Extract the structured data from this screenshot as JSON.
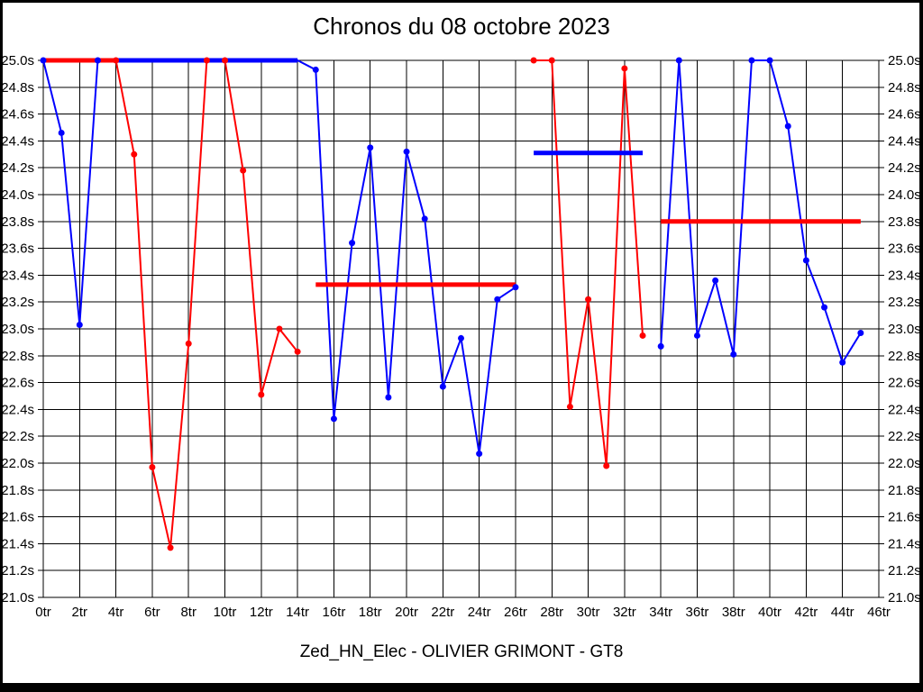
{
  "title": "Chronos du 08 octobre 2023",
  "subtitle": "Zed_HN_Elec - OLIVIER GRIMONT - GT8",
  "colors": {
    "blue": "#0000ff",
    "red": "#ff0000",
    "grid": "#000000",
    "background": "#ffffff",
    "text": "#000000"
  },
  "chart_data": {
    "type": "line",
    "title": "Chronos du 08 octobre 2023",
    "subtitle": "Zed_HN_Elec - OLIVIER GRIMONT - GT8",
    "x_unit": "tr",
    "y_unit": "s",
    "xlim": [
      0,
      46
    ],
    "ylim": [
      21.0,
      25.0
    ],
    "clip_max": 25.0,
    "grid": true,
    "y_ticks": [
      {
        "value": 25.0,
        "label": "25.0s"
      },
      {
        "value": 24.8,
        "label": "24.8s"
      },
      {
        "value": 24.6,
        "label": "24.6s"
      },
      {
        "value": 24.4,
        "label": "24.4s"
      },
      {
        "value": 24.2,
        "label": "24.2s"
      },
      {
        "value": 24.0,
        "label": "24.0s"
      },
      {
        "value": 23.8,
        "label": "23.8s"
      },
      {
        "value": 23.6,
        "label": "23.6s"
      },
      {
        "value": 23.4,
        "label": "23.4s"
      },
      {
        "value": 23.2,
        "label": "23.2s"
      },
      {
        "value": 23.0,
        "label": "23.0s"
      },
      {
        "value": 22.8,
        "label": "22.8s"
      },
      {
        "value": 22.6,
        "label": "22.6s"
      },
      {
        "value": 22.4,
        "label": "22.4s"
      },
      {
        "value": 22.2,
        "label": "22.2s"
      },
      {
        "value": 22.0,
        "label": "22.0s"
      },
      {
        "value": 21.8,
        "label": "21.8s"
      },
      {
        "value": 21.6,
        "label": "21.6s"
      },
      {
        "value": 21.4,
        "label": "21.4s"
      },
      {
        "value": 21.2,
        "label": "21.2s"
      },
      {
        "value": 21.0,
        "label": "21.0s"
      }
    ],
    "x_ticks": [
      {
        "value": 0,
        "label": "0tr"
      },
      {
        "value": 2,
        "label": "2tr"
      },
      {
        "value": 4,
        "label": "4tr"
      },
      {
        "value": 6,
        "label": "6tr"
      },
      {
        "value": 8,
        "label": "8tr"
      },
      {
        "value": 10,
        "label": "10tr"
      },
      {
        "value": 12,
        "label": "12tr"
      },
      {
        "value": 14,
        "label": "14tr"
      },
      {
        "value": 16,
        "label": "16tr"
      },
      {
        "value": 18,
        "label": "18tr"
      },
      {
        "value": 20,
        "label": "20tr"
      },
      {
        "value": 22,
        "label": "22tr"
      },
      {
        "value": 24,
        "label": "24tr"
      },
      {
        "value": 26,
        "label": "26tr"
      },
      {
        "value": 28,
        "label": "28tr"
      },
      {
        "value": 30,
        "label": "30tr"
      },
      {
        "value": 32,
        "label": "32tr"
      },
      {
        "value": 34,
        "label": "34tr"
      },
      {
        "value": 36,
        "label": "36tr"
      },
      {
        "value": 38,
        "label": "38tr"
      },
      {
        "value": 40,
        "label": "40tr"
      },
      {
        "value": 42,
        "label": "42tr"
      },
      {
        "value": 44,
        "label": "44tr"
      },
      {
        "value": 46,
        "label": "46tr"
      }
    ],
    "series": [
      {
        "name": "driver-blue",
        "color": "#0000ff",
        "stints": [
          {
            "points": [
              [
                0,
                25.0
              ],
              [
                1,
                24.46
              ],
              [
                2,
                23.03
              ],
              [
                3,
                25.0
              ],
              [
                4,
                25.0
              ],
              [
                5,
                25.0
              ],
              [
                6,
                25.0
              ],
              [
                7,
                25.0
              ],
              [
                8,
                25.0
              ],
              [
                9,
                25.0
              ],
              [
                10,
                25.0
              ],
              [
                11,
                25.0
              ],
              [
                12,
                25.0
              ],
              [
                13,
                25.0
              ],
              [
                14,
                25.0
              ],
              [
                15,
                24.93
              ],
              [
                16,
                22.33
              ],
              [
                17,
                23.64
              ],
              [
                18,
                24.35
              ],
              [
                19,
                22.49
              ],
              [
                20,
                24.32
              ],
              [
                21,
                23.82
              ],
              [
                22,
                22.57
              ],
              [
                23,
                22.93
              ],
              [
                24,
                22.07
              ],
              [
                25,
                23.22
              ],
              [
                26,
                23.31
              ]
            ],
            "dot_laps": [
              0,
              1,
              2,
              3,
              15,
              16,
              17,
              18,
              19,
              20,
              21,
              22,
              23,
              24,
              25,
              26
            ]
          },
          {
            "points": [
              [
                34,
                22.87
              ],
              [
                35,
                25.0
              ],
              [
                36,
                22.95
              ],
              [
                37,
                23.36
              ],
              [
                38,
                22.81
              ],
              [
                39,
                25.0
              ],
              [
                40,
                25.0
              ],
              [
                41,
                24.51
              ],
              [
                42,
                23.51
              ],
              [
                43,
                23.16
              ],
              [
                44,
                22.75
              ],
              [
                45,
                22.97
              ]
            ],
            "dot_laps": [
              34,
              35,
              36,
              37,
              38,
              39,
              40,
              41,
              42,
              43,
              44,
              45
            ]
          }
        ]
      },
      {
        "name": "driver-red",
        "color": "#ff0000",
        "stints": [
          {
            "points": [
              [
                0,
                25.0
              ],
              [
                1,
                25.0
              ],
              [
                2,
                25.0
              ],
              [
                3,
                25.0
              ],
              [
                4,
                25.0
              ],
              [
                5,
                24.3
              ],
              [
                6,
                21.97
              ],
              [
                7,
                21.37
              ],
              [
                8,
                22.89
              ],
              [
                9,
                25.0
              ],
              [
                10,
                25.0
              ],
              [
                11,
                24.18
              ],
              [
                12,
                22.51
              ],
              [
                13,
                23.0
              ],
              [
                14,
                22.83
              ]
            ],
            "dot_laps": [
              4,
              5,
              6,
              7,
              8,
              9,
              10,
              11,
              12,
              13,
              14
            ]
          },
          {
            "points": [
              [
                27,
                25.0
              ],
              [
                28,
                25.0
              ],
              [
                29,
                22.42
              ],
              [
                30,
                23.22
              ],
              [
                31,
                21.98
              ],
              [
                32,
                24.94
              ],
              [
                33,
                22.95
              ]
            ],
            "dot_laps": [
              27,
              28,
              29,
              30,
              31,
              32,
              33
            ]
          }
        ]
      }
    ],
    "average_segments": [
      {
        "color": "#ff0000",
        "y": 25.0,
        "from": 0,
        "to": 4
      },
      {
        "color": "#0000ff",
        "y": 25.0,
        "from": 4,
        "to": 14
      },
      {
        "color": "#ff0000",
        "y": 23.33,
        "from": 15,
        "to": 26
      },
      {
        "color": "#0000ff",
        "y": 24.31,
        "from": 27,
        "to": 33
      },
      {
        "color": "#ff0000",
        "y": 23.8,
        "from": 34,
        "to": 45
      }
    ]
  }
}
